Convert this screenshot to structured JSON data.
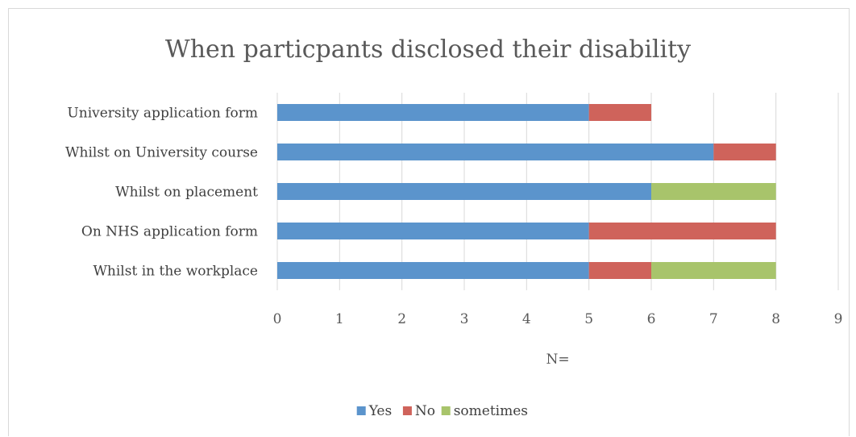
{
  "chart_data": {
    "type": "bar",
    "orientation": "horizontal",
    "stacked": true,
    "title": "When particpants disclosed their disability",
    "xlabel": "N=",
    "ylabel": "",
    "xlim": [
      0,
      9
    ],
    "xticks": [
      0,
      1,
      2,
      3,
      4,
      5,
      6,
      7,
      8,
      9
    ],
    "grid": true,
    "legend_position": "bottom",
    "categories": [
      "University application form",
      "Whilst on University course",
      "Whilst on placement",
      "On NHS application form",
      "Whilst in the workplace"
    ],
    "series": [
      {
        "name": "Yes",
        "color": "#5b94cc",
        "values": [
          5,
          7,
          6,
          5,
          5
        ]
      },
      {
        "name": "No",
        "color": "#cf635b",
        "values": [
          1,
          1,
          0,
          3,
          1
        ]
      },
      {
        "name": "sometimes",
        "color": "#a8c46b",
        "values": [
          0,
          0,
          2,
          0,
          2
        ]
      }
    ]
  }
}
